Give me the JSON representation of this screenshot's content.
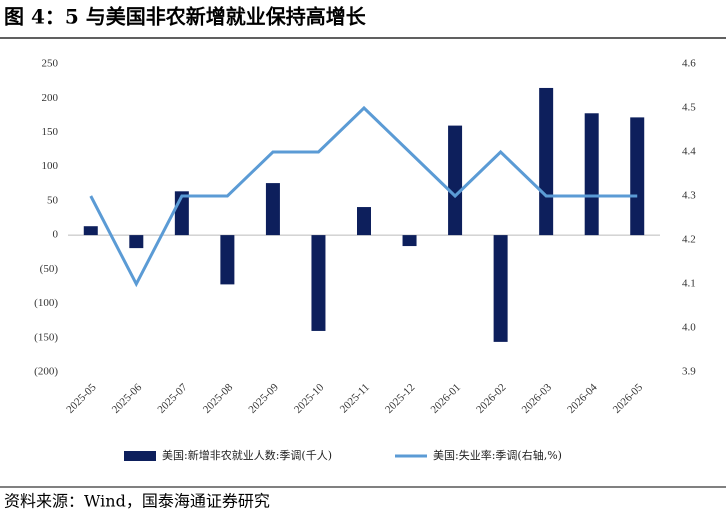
{
  "title": "图 4：5 与美国非农新增就业保持高增长",
  "source": "资料来源：Wind，国泰海通证券研究",
  "chart_data": {
    "type": "bar-line",
    "categories": [
      "2025-05",
      "2025-06",
      "2025-07",
      "2025-08",
      "2025-09",
      "2025-10",
      "2025-11",
      "2025-12",
      "2026-01",
      "2026-02",
      "2026-03",
      "2026-04",
      "2026-05"
    ],
    "series": [
      {
        "name": "美国:新增非农就业人数:季调(千人)",
        "type": "bar",
        "color": "#0d1f5c",
        "values": [
          13,
          -19,
          64,
          -72,
          76,
          -140,
          41,
          -16,
          160,
          -156,
          215,
          178,
          172
        ]
      },
      {
        "name": "美国:失业率:季调(右轴,%)",
        "type": "line",
        "axis": "y2",
        "color": "#5b9bd5",
        "values": [
          4.3,
          4.1,
          4.3,
          4.3,
          4.4,
          4.4,
          4.5,
          4.4,
          4.3,
          4.4,
          4.3,
          4.3,
          4.3
        ]
      }
    ],
    "ylim": [
      -200,
      250
    ],
    "yticks": [
      {
        "value": -200,
        "label": "(200)"
      },
      {
        "value": -150,
        "label": "(150)"
      },
      {
        "value": -100,
        "label": "(100)"
      },
      {
        "value": -50,
        "label": "(50)"
      },
      0,
      50,
      100,
      150,
      200,
      250
    ],
    "negative_tick_color": "#c00000",
    "y2lim": [
      3.9,
      4.6
    ],
    "y2ticks": [
      3.9,
      {
        "value": 4,
        "label": "4.0"
      },
      4.1,
      4.2,
      4.3,
      4.4,
      4.5,
      4.6
    ],
    "legend": "bottom"
  }
}
